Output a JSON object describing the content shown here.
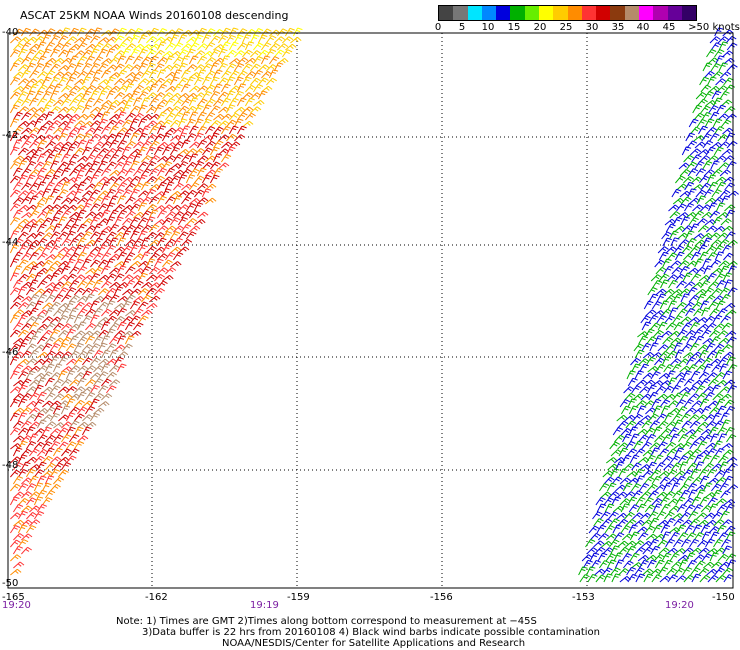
{
  "title": "ASCAT 25KM NOAA Winds 20160108 descending",
  "scale": {
    "colors": [
      "#444444",
      "#777777",
      "#00e5ff",
      "#0088ff",
      "#0000dd",
      "#00b000",
      "#66ee00",
      "#ffff00",
      "#ffcc00",
      "#ff8c00",
      "#ff3333",
      "#d10000",
      "#8b3a0e",
      "#b58b6a",
      "#ff00ff",
      "#b000b0",
      "#660099",
      "#330066"
    ],
    "labels": [
      "0",
      "5",
      "10",
      "15",
      "20",
      "25",
      "30",
      "35",
      "40",
      "45",
      ">50 knots"
    ]
  },
  "axes": {
    "x_ticks": [
      "-165",
      "-162",
      "-159",
      "-156",
      "-153",
      "-150"
    ],
    "y_ticks": [
      "-40",
      "-42",
      "-44",
      "-46",
      "-48",
      "-50"
    ]
  },
  "times": [
    "19:20",
    "19:19",
    "19:20"
  ],
  "notes": [
    "Note: 1) Times are GMT 2)Times along bottom correspond to measurement at −45S",
    "3)Data buffer is 22 hrs from 20160108 4) Black wind barbs indicate possible contamination",
    "NOAA/NESDIS/Center for Satellite Applications and Research"
  ]
}
